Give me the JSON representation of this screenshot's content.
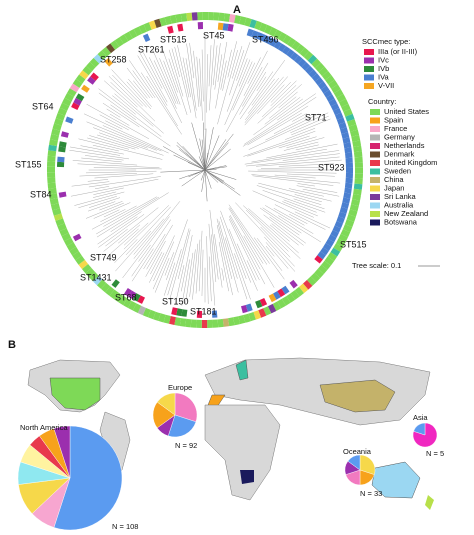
{
  "panel_a": {
    "label": "A",
    "st_labels": [
      "ST45",
      "ST496",
      "ST515",
      "ST261",
      "ST258",
      "ST71",
      "ST64",
      "ST155",
      "ST84",
      "ST923",
      "ST515",
      "ST749",
      "ST1431",
      "ST68",
      "ST150",
      "ST181"
    ],
    "sccmec_legend": {
      "title": "SCCmec type:",
      "items": [
        {
          "label": "IIIa (or II-III)",
          "color": "#e8174f"
        },
        {
          "label": "IVc",
          "color": "#9b2fae"
        },
        {
          "label": "IVb",
          "color": "#2e8b3a"
        },
        {
          "label": "IVa",
          "color": "#4a7fd0"
        },
        {
          "label": "V-VII",
          "color": "#f5a623"
        }
      ]
    },
    "country_legend": {
      "title": "Country:",
      "items": [
        {
          "label": "United States",
          "color": "#7ed957"
        },
        {
          "label": "Spain",
          "color": "#f7a21b"
        },
        {
          "label": "France",
          "color": "#f9a7c8"
        },
        {
          "label": "Germany",
          "color": "#b5b5b5"
        },
        {
          "label": "Netherlands",
          "color": "#d6246e"
        },
        {
          "label": "Denmark",
          "color": "#6b4e2e"
        },
        {
          "label": "United Kingdom",
          "color": "#e8394c"
        },
        {
          "label": "Sweden",
          "color": "#3bbfa0"
        },
        {
          "label": "China",
          "color": "#c4b26a"
        },
        {
          "label": "Japan",
          "color": "#f6d84a"
        },
        {
          "label": "Sri Lanka",
          "color": "#7a3a9a"
        },
        {
          "label": "Australia",
          "color": "#9bd7f2"
        },
        {
          "label": "New Zealand",
          "color": "#b8e04a"
        },
        {
          "label": "Botswana",
          "color": "#1a1a5c"
        }
      ]
    },
    "tree_scale": "Tree scale: 0.1"
  },
  "panel_b": {
    "label": "B",
    "regions": [
      {
        "name": "North America",
        "n_label": "N = 108",
        "slices": [
          {
            "value": 55,
            "color": "#5b9bf0"
          },
          {
            "value": 8,
            "color": "#f7a6d0"
          },
          {
            "value": 10,
            "color": "#f6d84a"
          },
          {
            "value": 7,
            "color": "#8fe8f0"
          },
          {
            "value": 6,
            "color": "#fff3a0"
          },
          {
            "value": 4,
            "color": "#e8394c"
          },
          {
            "value": 5,
            "color": "#f7a21b"
          },
          {
            "value": 5,
            "color": "#9b2fae"
          }
        ]
      },
      {
        "name": "Europe",
        "n_label": "N = 92",
        "slices": [
          {
            "value": 30,
            "color": "#f27ac0"
          },
          {
            "value": 25,
            "color": "#5b9bf0"
          },
          {
            "value": 10,
            "color": "#9b2fae"
          },
          {
            "value": 20,
            "color": "#f7a21b"
          },
          {
            "value": 15,
            "color": "#f6d84a"
          }
        ]
      },
      {
        "name": "Asia",
        "n_label": "N = 5",
        "slices": [
          {
            "value": 80,
            "color": "#f027c0"
          },
          {
            "value": 20,
            "color": "#5b9bf0"
          }
        ]
      },
      {
        "name": "Oceania",
        "n_label": "N = 33",
        "slices": [
          {
            "value": 30,
            "color": "#f6d84a"
          },
          {
            "value": 20,
            "color": "#f7a21b"
          },
          {
            "value": 20,
            "color": "#f27ac0"
          },
          {
            "value": 15,
            "color": "#9b2fae"
          },
          {
            "value": 15,
            "color": "#5b9bf0"
          }
        ]
      }
    ]
  }
}
